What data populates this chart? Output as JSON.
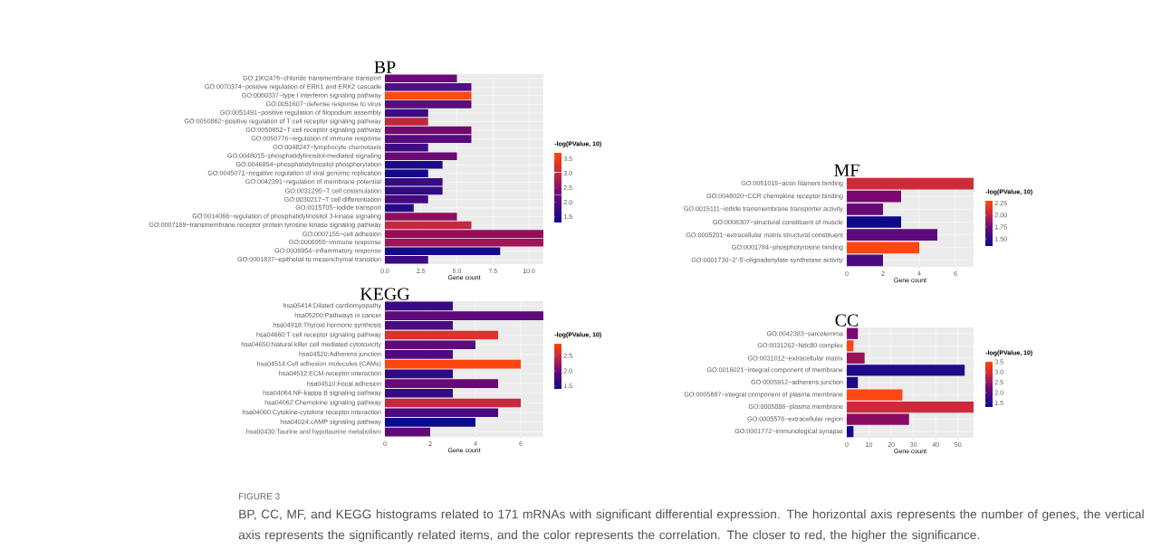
{
  "chart_data": [
    {
      "type": "bar",
      "orientation": "horizontal",
      "title": "BP",
      "xlabel": "Gene count",
      "clabel": "-log(PValue, 10)",
      "grid": true,
      "categories": [
        "GO:1902476~chloride transmembrane transport",
        "GO:0070374~positive regulation of ERK1 and ERK2 cascade",
        "GO:0060337~type I interferon signaling pathway",
        "GO:0051607~defense response to virus",
        "GO:0051491~positive regulation of filopodium assembly",
        "GO:0050862~positive regulation of T cell receptor signaling pathway",
        "GO:0050852~T cell receptor signaling pathway",
        "GO:0050776~regulation of immune response",
        "GO:0048247~lymphocyte chemotaxis",
        "GO:0048015~phosphatidylinositol-mediated signaling",
        "GO:0046854~phosphatidylinositol phosphorylation",
        "GO:0045071~negative regulation of viral genome replication",
        "GO:0042391~regulation of membrane potential",
        "GO:0031295~T cell costimulation",
        "GO:0030217~T cell differentiation",
        "GO:0015705~iodide transport",
        "GO:0014066~regulation of phosphatidylinositol 3-kinase signaling",
        "GO:0007169~transmembrane receptor protein tyrosine kinase signaling pathway",
        "GO:0007155~cell adhesion",
        "GO:0006955~immune response",
        "GO:0006954~inflammatory response",
        "GO:0001837~epithelial to mesenchymal transition"
      ],
      "values": [
        5,
        6,
        6,
        6,
        3,
        3,
        6,
        6,
        3,
        5,
        4,
        3,
        4,
        4,
        3,
        2,
        5,
        6,
        11,
        11,
        8,
        3
      ],
      "colors": [
        "#6b0a78",
        "#4f0f7f",
        "#ff4a10",
        "#5a0c7c",
        "#3d0a84",
        "#c0263f",
        "#70086f",
        "#560b7c",
        "#400a82",
        "#6a0876",
        "#1c0a88",
        "#15088a",
        "#380a84",
        "#330a85",
        "#420a82",
        "#250a88",
        "#8c0f5f",
        "#c22a3e",
        "#930f5a",
        "#a01654",
        "#140a8a",
        "#3b0a84"
      ],
      "xlim": [
        0,
        11
      ],
      "xticks": [
        {
          "value": 0,
          "label": "0.0"
        },
        {
          "value": 2.5,
          "label": "2.5"
        },
        {
          "value": 5,
          "label": "5.0"
        },
        {
          "value": 7.5,
          "label": "7.5"
        },
        {
          "value": 10,
          "label": "10.0"
        }
      ],
      "clim": [
        1.3,
        3.7
      ],
      "cticks": [
        {
          "value": 1.5,
          "label": "1.5"
        },
        {
          "value": 2,
          "label": "2.0"
        },
        {
          "value": 2.5,
          "label": "2.5"
        },
        {
          "value": 3,
          "label": "3.0"
        },
        {
          "value": 3.5,
          "label": "3.5"
        }
      ]
    },
    {
      "type": "bar",
      "orientation": "horizontal",
      "title": "MF",
      "xlabel": "Gene count",
      "clabel": "-log(PValue, 10)",
      "grid": true,
      "categories": [
        "GO:0051015~actin filament binding",
        "GO:0048020~CCR chemokine receptor binding",
        "GO:0015111~iodide transmembrane transporter activity",
        "GO:0008307~structural constituent of muscle",
        "GO:0005201~extracellular matrix structural constituent",
        "GO:0001784~phosphotyrosine binding",
        "GO:0001730~2'-5'-oligoadenylate synthetase activity"
      ],
      "values": [
        7,
        3,
        2,
        3,
        5,
        4,
        2
      ],
      "colors": [
        "#d02a3a",
        "#7a0870",
        "#6a0877",
        "#10088a",
        "#5e0a7a",
        "#ff4510",
        "#4a0a80"
      ],
      "xlim": [
        0,
        7
      ],
      "xticks": [
        0,
        2,
        4,
        6
      ],
      "clim": [
        1.35,
        2.3
      ],
      "cticks": [
        {
          "value": 1.5,
          "label": "1.50"
        },
        {
          "value": 1.75,
          "label": "1.75"
        },
        {
          "value": 2,
          "label": "2.00"
        },
        {
          "value": 2.25,
          "label": "2.25"
        }
      ]
    },
    {
      "type": "bar",
      "orientation": "horizontal",
      "title": "KEGG",
      "xlabel": "Gene count",
      "clabel": "-log(PValue, 10)",
      "grid": true,
      "categories": [
        "hsa05414:Dilated cardiomyopathy",
        "hsa05200:Pathways in cancer",
        "hsa04918:Thyroid hormone synthesis",
        "hsa04660:T cell receptor signaling pathway",
        "hsa04650:Natural killer cell mediated cytotoxicity",
        "hsa04520:Adherens junction",
        "hsa04514:Cell adhesion molecules (CAMs)",
        "hsa04512:ECM-receptor interaction",
        "hsa04510:Focal adhesion",
        "hsa04064:NF-kappa B signaling pathway",
        "hsa04062:Chemokine signaling pathway",
        "hsa04060:Cytokine-cytokine receptor interaction",
        "hsa04024:cAMP signaling pathway",
        "hsa00430:Taurine and hypotaurine metabolism"
      ],
      "values": [
        3,
        7,
        3,
        5,
        4,
        3,
        6,
        3,
        5,
        3,
        6,
        5,
        4,
        2
      ],
      "colors": [
        "#3a0a84",
        "#5c0a7b",
        "#4a0a80",
        "#e0302e",
        "#600a79",
        "#500a7f",
        "#ff4510",
        "#300a86",
        "#6a0876",
        "#360a85",
        "#c8283d",
        "#4a0a80",
        "#0a0a8c",
        "#640878"
      ],
      "xlim": [
        0,
        7
      ],
      "xticks": [
        0,
        2,
        4,
        6
      ],
      "clim": [
        1.4,
        2.9
      ],
      "cticks": [
        {
          "value": 1.5,
          "label": "1.5"
        },
        {
          "value": 2,
          "label": "2.0"
        },
        {
          "value": 2.5,
          "label": "2.5"
        }
      ]
    },
    {
      "type": "bar",
      "orientation": "horizontal",
      "title": "CC",
      "xlabel": "Gene count",
      "clabel": "-log(PValue, 10)",
      "grid": true,
      "categories": [
        "GO:0042383~sarcolemma",
        "GO:0031262~Ndc80 complex",
        "GO:0031012~extracellular matrix",
        "GO:0016021~integral component of membrane",
        "GO:0005912~adherens junction",
        "GO:0005887~integral component of plasma membrane",
        "GO:0005886~plasma membrane",
        "GO:0005576~extracellular region",
        "GO:0001772~immunological synapse"
      ],
      "values": [
        5,
        3,
        8,
        53,
        5,
        25,
        57,
        28,
        3
      ],
      "colors": [
        "#7a0870",
        "#ff4510",
        "#9a1058",
        "#200a88",
        "#1e0a88",
        "#ff4812",
        "#d02a3a",
        "#880c63",
        "#10088a"
      ],
      "xlim": [
        0,
        57
      ],
      "xticks": [
        0,
        10,
        20,
        30,
        40,
        50
      ],
      "clim": [
        1.3,
        3.5
      ],
      "cticks": [
        {
          "value": 1.5,
          "label": "1.5"
        },
        {
          "value": 2,
          "label": "2.0"
        },
        {
          "value": 2.5,
          "label": "2.5"
        },
        {
          "value": 3,
          "label": "3.0"
        },
        {
          "value": 3.5,
          "label": "3.5"
        }
      ]
    },
    {
      "type": "other",
      "annotations": [
        "FIGURE 3",
        "BP, CC, MF, and KEGG histograms related to 171 mRNAs with significant differential expression. The horizontal axis represents the number of genes, the vertical axis represents the significantly related items, and the color represents the correlation. The closer to red, the higher the significance."
      ]
    }
  ]
}
